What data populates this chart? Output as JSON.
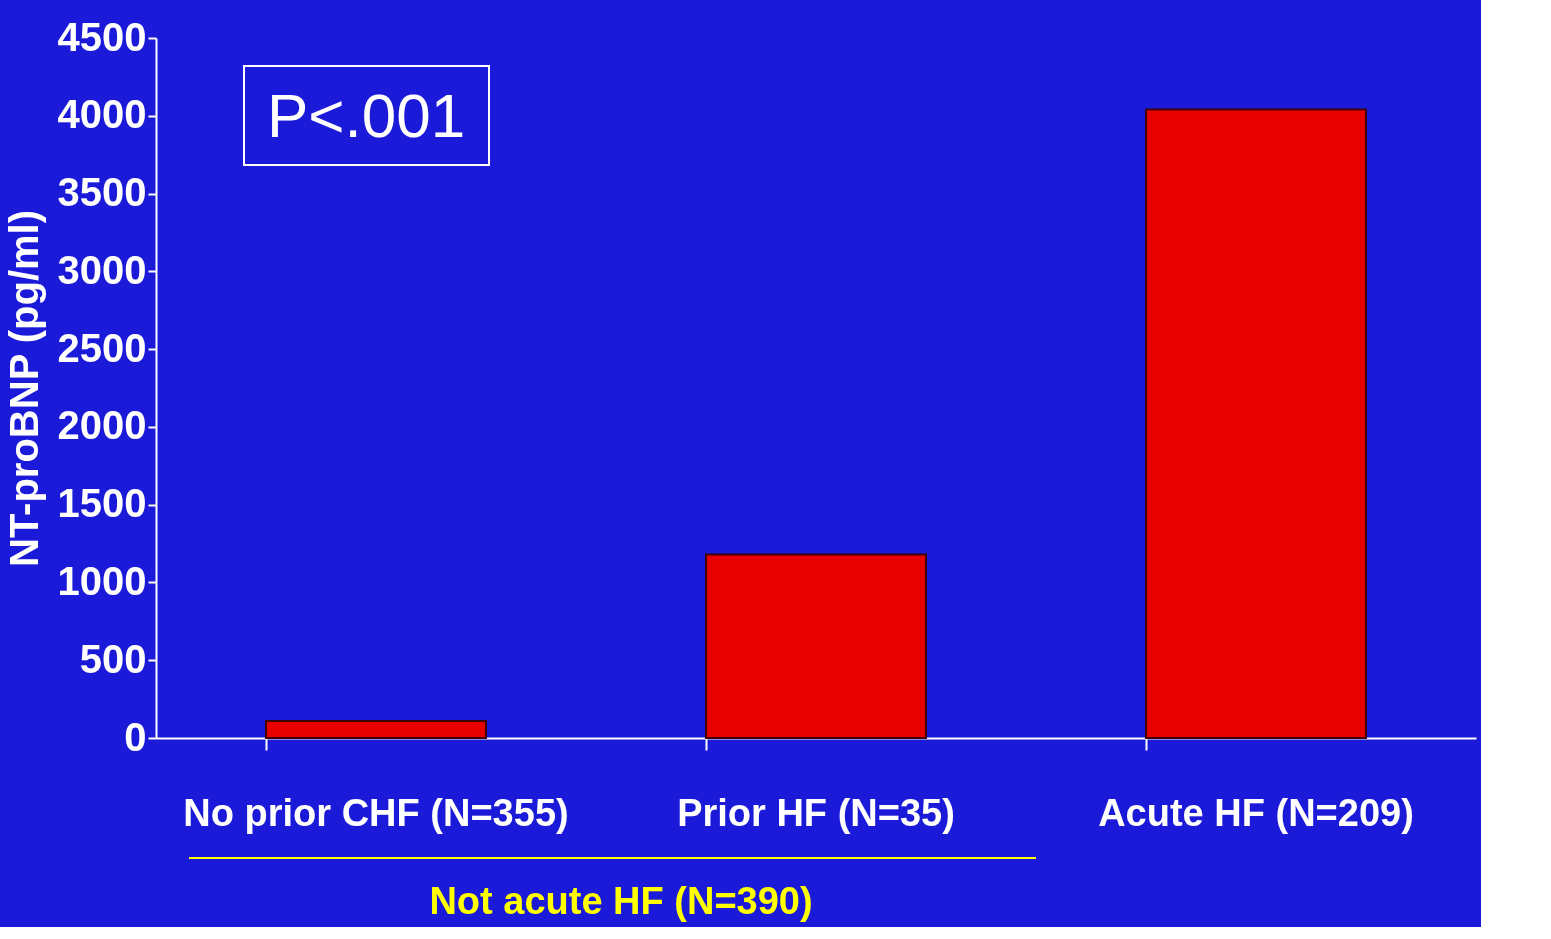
{
  "chart_data": {
    "type": "bar",
    "ylabel": "NT-proBNP (pg/ml)",
    "categories": [
      "No prior CHF (N=355)",
      "Prior HF (N=35)",
      "Acute HF (N=209)"
    ],
    "values": [
      110,
      1180,
      4040
    ],
    "color": "#e80000",
    "ylim": [
      0,
      4500
    ],
    "yticks": [
      0,
      500,
      1000,
      1500,
      2000,
      2500,
      3000,
      3500,
      4000,
      4500
    ],
    "grid": false,
    "annotations": [
      "P<.001",
      "Not acute HF (N=390)"
    ]
  }
}
